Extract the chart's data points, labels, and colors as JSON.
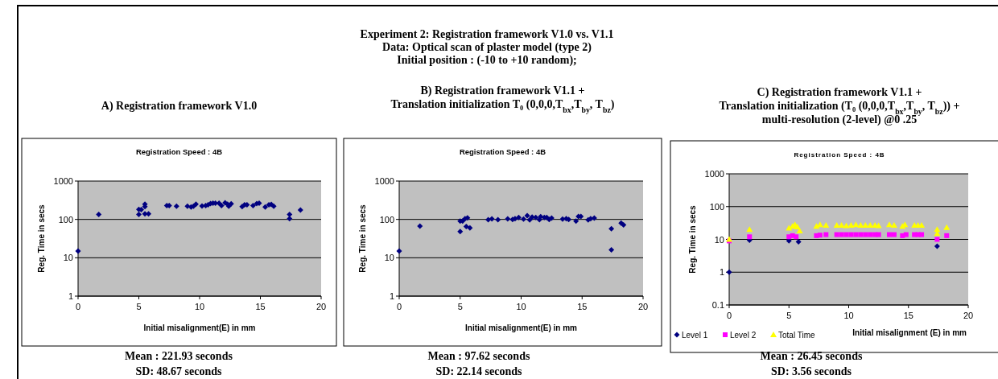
{
  "chart_data": [
    {
      "type": "scatter",
      "title": "A) Registration framework V1.0",
      "subtitle": "Registration Speed : 4B",
      "xlabel": "Initial misalignment(E) in mm",
      "ylabel": "Reg. Time in secs",
      "log": "y",
      "grid": "y",
      "marker": "diamond",
      "legend": false,
      "xlim": [
        0,
        20
      ],
      "xticks": [
        0,
        5,
        10,
        15,
        20
      ],
      "ylim": [
        1,
        1000
      ],
      "yticks": [
        1,
        10,
        100,
        1000
      ],
      "series": [
        {
          "color": "#000080",
          "x": [
            0,
            1.7,
            5,
            5,
            5.2,
            5.5,
            5.5,
            5.5,
            5.8,
            7.3,
            7.5,
            8.1,
            9,
            9.3,
            9.5,
            9.7,
            10.2,
            10.5,
            10.7,
            10.9,
            11.1,
            11.3,
            11.8,
            11.6,
            12.1,
            12.3,
            12.4,
            12.6,
            13.5,
            13.7,
            13.9,
            14.4,
            14.7,
            14.9,
            15.4,
            15.7,
            15.9,
            16.1,
            17.4,
            17.4,
            18.3
          ],
          "values": [
            15,
            134,
            182,
            134,
            180,
            250,
            215,
            140,
            140,
            230,
            230,
            220,
            220,
            210,
            220,
            250,
            225,
            230,
            240,
            260,
            265,
            265,
            230,
            265,
            270,
            250,
            220,
            255,
            215,
            240,
            240,
            230,
            260,
            265,
            210,
            240,
            245,
            220,
            134,
            105,
            175
          ]
        }
      ],
      "annotations": [
        "Experiment 2: Registration framework V1.0 vs. V1.1",
        "Data: Optical scan of plaster model (type 2)",
        "Initial position : (-10 to +10 random);",
        "Mean : 221.93 seconds",
        "SD: 48.67 seconds"
      ]
    },
    {
      "type": "scatter",
      "title": "B) Registration framework V1.1 +\nTranslation initialization T₀ (0,0,0,T$_{bx}$,T$_{by}$, T$_{bz}$)",
      "subtitle": "Registration Speed : 4B",
      "xlabel": "Initial misalignment(E) in mm",
      "ylabel": "Reg. Time in secs",
      "log": "y",
      "grid": "y",
      "marker": "diamond",
      "legend": false,
      "xlim": [
        0,
        20
      ],
      "xticks": [
        0,
        5,
        10,
        15,
        20
      ],
      "ylim": [
        1,
        1000
      ],
      "yticks": [
        1,
        10,
        100,
        1000
      ],
      "series": [
        {
          "color": "#000080",
          "x": [
            0,
            1.7,
            5,
            5,
            5.2,
            5.4,
            5.5,
            5.6,
            5.8,
            7.3,
            7.6,
            8.1,
            8.9,
            9.3,
            9.5,
            9.8,
            10.2,
            10.5,
            10.7,
            10.9,
            11.2,
            11.5,
            11.6,
            11.9,
            12.1,
            12.3,
            12.5,
            13.4,
            13.7,
            13.9,
            14.5,
            14.7,
            14.9,
            15.5,
            15.7,
            16,
            17.4,
            17.4,
            18.2,
            18.4
          ],
          "values": [
            15,
            67,
            90,
            48,
            90,
            105,
            65,
            110,
            60,
            98,
            103,
            98,
            103,
            100,
            105,
            112,
            102,
            125,
            97,
            115,
            112,
            98,
            118,
            112,
            113,
            100,
            108,
            102,
            105,
            100,
            90,
            120,
            120,
            97,
            105,
            108,
            57,
            16,
            80,
            72
          ]
        }
      ],
      "annotations": [
        "Mean : 97.62 seconds",
        "SD: 22.14 seconds"
      ]
    },
    {
      "type": "scatter",
      "title": "C) Registration framework V1.1 +\nTranslation initialization (T₀ (0,0,0,T$_{bx}$,T$_{by}$, T$_{bz}$)) +\nmulti-resolution (2-level) @0 .25",
      "subtitle": "Registration Speed : 4B",
      "xlabel": "Initial misalignment (E) in mm",
      "ylabel": "Reg. Time in secs",
      "log": "y",
      "grid": "y",
      "legend": "bottom left",
      "xlim": [
        0,
        20
      ],
      "xticks": [
        0,
        5,
        10,
        15,
        20
      ],
      "ylim": [
        0.1,
        1000
      ],
      "yticks": [
        0.1,
        1,
        10,
        100,
        1000
      ],
      "series": [
        {
          "name": "Level 1",
          "color": "#000080",
          "marker": "diamond",
          "x": [
            0,
            1.7,
            5,
            5.8,
            17.4
          ],
          "values": [
            1,
            9.5,
            9,
            8.5,
            6.2
          ]
        },
        {
          "name": "Level 2",
          "color": "#ff00ff",
          "marker": "square",
          "x": [
            0,
            1.7,
            5,
            5.3,
            5.6,
            7.3,
            7.6,
            8.1,
            9,
            9.4,
            9.8,
            10.2,
            10.6,
            11,
            11.4,
            11.8,
            12.2,
            12.5,
            13.4,
            13.8,
            14.5,
            14.8,
            15.5,
            15.8,
            16.1,
            17.4,
            18.2
          ],
          "values": [
            9,
            12,
            12,
            13,
            12,
            13,
            13.5,
            14,
            14,
            14,
            14,
            14,
            14,
            14,
            14,
            14,
            14,
            14,
            14,
            14,
            13,
            14,
            14,
            14,
            14,
            10,
            13
          ]
        },
        {
          "name": "Total Time",
          "color": "#ffff00",
          "marker": "triangle",
          "x": [
            0,
            1.7,
            5,
            5.3,
            5.5,
            5.7,
            5.9,
            7.3,
            7.6,
            8.1,
            9,
            9.4,
            9.8,
            10.2,
            10.6,
            11,
            11.4,
            11.8,
            12.2,
            12.5,
            13.4,
            13.8,
            14.5,
            14.7,
            15.5,
            15.8,
            16.1,
            17.4,
            17.4,
            18.2
          ],
          "values": [
            10,
            20,
            22,
            25,
            28,
            24,
            18,
            25,
            28,
            27,
            27,
            27,
            26,
            27,
            28,
            27,
            27,
            27,
            27,
            26,
            28,
            27,
            25,
            28,
            27,
            27,
            27,
            20,
            15,
            23
          ]
        }
      ],
      "annotations": [
        "Mean : 26.45 seconds",
        "SD: 3.56 seconds"
      ]
    }
  ]
}
